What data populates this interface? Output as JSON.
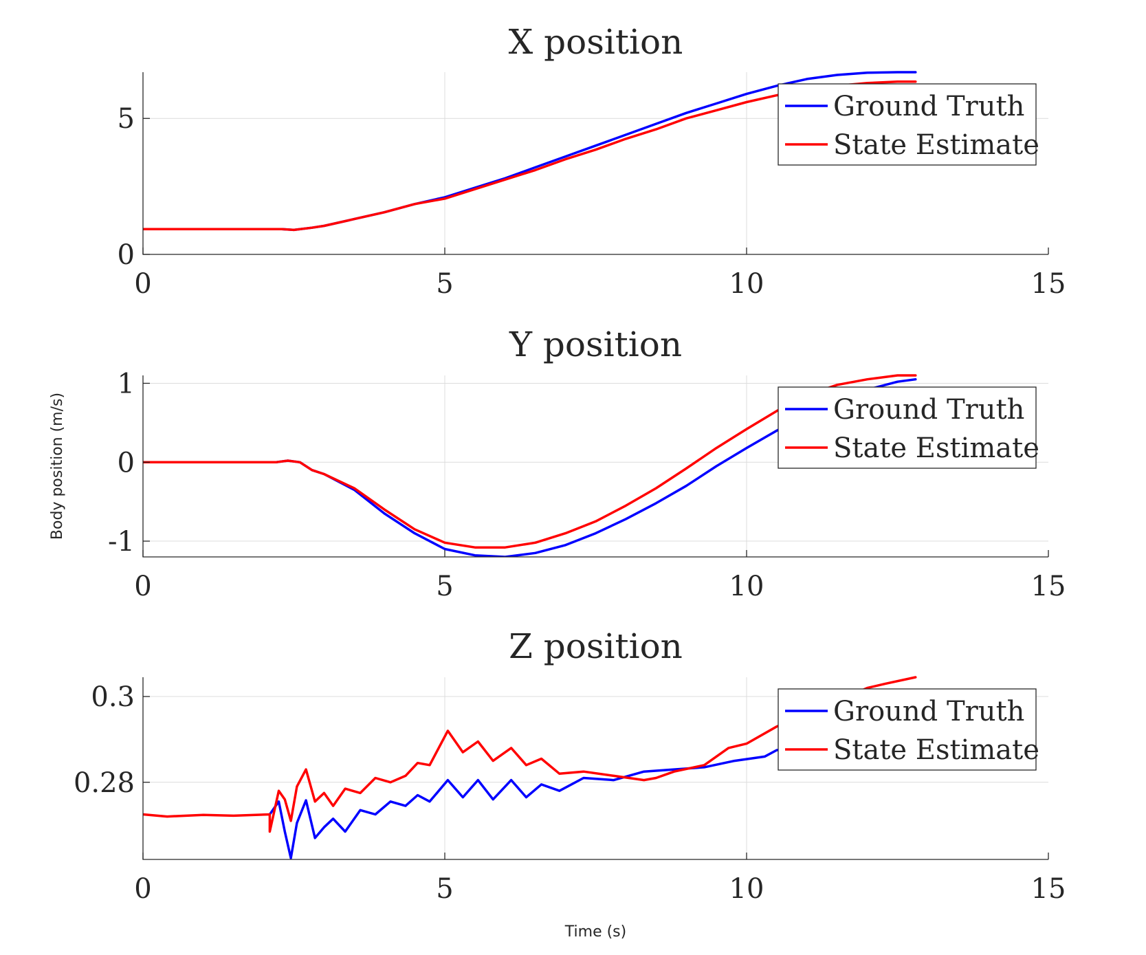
{
  "chart_data": [
    {
      "type": "line",
      "title": "X position",
      "xlim": [
        0,
        15
      ],
      "ylim": [
        0,
        6.7
      ],
      "xticks": [
        "0",
        "5",
        "10",
        "15"
      ],
      "xtick_values": [
        0,
        5,
        10,
        15
      ],
      "yticks": [
        "0",
        "5"
      ],
      "ytick_values": [
        0,
        5
      ],
      "grid": true,
      "legend": "top-right",
      "series": [
        {
          "name": "Ground Truth",
          "color": "#0000ff",
          "x": [
            0,
            1,
            2,
            2.3,
            2.5,
            2.8,
            3,
            3.5,
            4,
            4.5,
            5,
            5.5,
            6,
            6.5,
            7,
            7.5,
            8,
            8.5,
            9,
            9.5,
            10,
            10.5,
            11,
            11.5,
            12,
            12.5,
            12.8
          ],
          "y": [
            0.93,
            0.93,
            0.93,
            0.93,
            0.9,
            0.98,
            1.05,
            1.3,
            1.55,
            1.85,
            2.1,
            2.45,
            2.8,
            3.2,
            3.6,
            4.0,
            4.4,
            4.8,
            5.2,
            5.55,
            5.9,
            6.2,
            6.45,
            6.6,
            6.68,
            6.7,
            6.7
          ]
        },
        {
          "name": "State Estimate",
          "color": "#ff0000",
          "x": [
            0,
            1,
            2,
            2.3,
            2.5,
            2.8,
            3,
            3.5,
            4,
            4.5,
            5,
            5.5,
            6,
            6.5,
            7,
            7.5,
            8,
            8.5,
            9,
            9.5,
            10,
            10.5,
            11,
            11.5,
            12,
            12.5,
            12.8
          ],
          "y": [
            0.93,
            0.93,
            0.93,
            0.93,
            0.9,
            0.98,
            1.05,
            1.3,
            1.55,
            1.85,
            2.05,
            2.4,
            2.75,
            3.1,
            3.5,
            3.85,
            4.25,
            4.6,
            5.0,
            5.3,
            5.6,
            5.85,
            6.05,
            6.2,
            6.3,
            6.35,
            6.35
          ]
        }
      ]
    },
    {
      "type": "line",
      "title": "Y position",
      "ylabel": "Body position (m/s)",
      "xlim": [
        0,
        15
      ],
      "ylim": [
        -1.2,
        1.1
      ],
      "xticks": [
        "0",
        "5",
        "10",
        "15"
      ],
      "xtick_values": [
        0,
        5,
        10,
        15
      ],
      "yticks": [
        "-1",
        "0",
        "1"
      ],
      "ytick_values": [
        -1,
        0,
        1
      ],
      "grid": true,
      "legend": "top-right",
      "series": [
        {
          "name": "Ground Truth",
          "color": "#0000ff",
          "x": [
            0,
            1,
            2,
            2.2,
            2.4,
            2.6,
            2.8,
            3,
            3.5,
            4,
            4.5,
            5,
            5.5,
            6,
            6.5,
            7,
            7.5,
            8,
            8.5,
            9,
            9.5,
            10,
            10.5,
            11,
            11.5,
            12,
            12.5,
            12.8
          ],
          "y": [
            0,
            0,
            0,
            0,
            0.02,
            0,
            -0.1,
            -0.15,
            -0.35,
            -0.65,
            -0.9,
            -1.1,
            -1.18,
            -1.2,
            -1.15,
            -1.05,
            -0.9,
            -0.72,
            -0.52,
            -0.3,
            -0.05,
            0.18,
            0.4,
            0.6,
            0.78,
            0.92,
            1.02,
            1.05
          ]
        },
        {
          "name": "State Estimate",
          "color": "#ff0000",
          "x": [
            0,
            1,
            2,
            2.2,
            2.4,
            2.6,
            2.8,
            3,
            3.5,
            4,
            4.5,
            5,
            5.5,
            6,
            6.5,
            7,
            7.5,
            8,
            8.5,
            9,
            9.5,
            10,
            10.5,
            11,
            11.5,
            12,
            12.5,
            12.8
          ],
          "y": [
            0,
            0,
            0,
            0,
            0.02,
            0,
            -0.1,
            -0.15,
            -0.33,
            -0.6,
            -0.85,
            -1.02,
            -1.08,
            -1.08,
            -1.02,
            -0.9,
            -0.75,
            -0.55,
            -0.33,
            -0.08,
            0.18,
            0.42,
            0.65,
            0.85,
            0.98,
            1.05,
            1.1,
            1.1
          ]
        }
      ]
    },
    {
      "type": "line",
      "title": "Z position",
      "xlabel": "Time (s)",
      "xlim": [
        0,
        15
      ],
      "ylim": [
        0.262,
        0.3045
      ],
      "xticks": [
        "0",
        "5",
        "10",
        "15"
      ],
      "xtick_values": [
        0,
        5,
        10,
        15
      ],
      "yticks": [
        "0.28",
        "0.3"
      ],
      "ytick_values": [
        0.28,
        0.3
      ],
      "grid": true,
      "legend": "top-right",
      "series": [
        {
          "name": "Ground Truth",
          "color": "#0000ff",
          "x": [
            2.1,
            2.25,
            2.35,
            2.45,
            2.55,
            2.7,
            2.85,
            3.0,
            3.15,
            3.35,
            3.6,
            3.85,
            4.1,
            4.35,
            4.55,
            4.75,
            5.05,
            5.3,
            5.55,
            5.8,
            6.1,
            6.35,
            6.6,
            6.9,
            7.3,
            7.8,
            8.3,
            8.8,
            9.3,
            9.8,
            10.3,
            10.5,
            11.0,
            11.5,
            12.0,
            12.5,
            12.8
          ],
          "y": [
            0.2725,
            0.2755,
            0.2685,
            0.2623,
            0.2705,
            0.2758,
            0.267,
            0.2695,
            0.2715,
            0.2685,
            0.2735,
            0.2725,
            0.2755,
            0.2745,
            0.277,
            0.2755,
            0.2805,
            0.2765,
            0.2805,
            0.276,
            0.2805,
            0.2765,
            0.2795,
            0.278,
            0.281,
            0.2805,
            0.2825,
            0.283,
            0.2835,
            0.285,
            0.286,
            0.2875,
            0.288,
            0.289,
            0.29,
            0.2905,
            0.291
          ]
        },
        {
          "name": "State Estimate",
          "color": "#ff0000",
          "x": [
            0,
            0.4,
            1.0,
            1.5,
            2.1,
            2.1,
            2.25,
            2.35,
            2.45,
            2.55,
            2.7,
            2.85,
            3.0,
            3.15,
            3.35,
            3.6,
            3.85,
            4.1,
            4.35,
            4.55,
            4.75,
            5.05,
            5.3,
            5.55,
            5.8,
            6.1,
            6.35,
            6.6,
            6.9,
            7.3,
            7.8,
            8.3,
            8.5,
            8.8,
            9.3,
            9.7,
            10.0,
            10.5,
            11.0,
            11.5,
            12.0,
            12.3,
            12.8
          ],
          "y": [
            0.2725,
            0.272,
            0.2724,
            0.2722,
            0.2725,
            0.2685,
            0.278,
            0.276,
            0.271,
            0.279,
            0.283,
            0.2755,
            0.2775,
            0.2745,
            0.2785,
            0.2775,
            0.281,
            0.28,
            0.2815,
            0.2845,
            0.284,
            0.292,
            0.287,
            0.2895,
            0.285,
            0.288,
            0.284,
            0.2855,
            0.282,
            0.2825,
            0.2815,
            0.2805,
            0.281,
            0.2825,
            0.284,
            0.288,
            0.289,
            0.293,
            0.296,
            0.299,
            0.302,
            0.303,
            0.3045
          ]
        }
      ]
    }
  ]
}
